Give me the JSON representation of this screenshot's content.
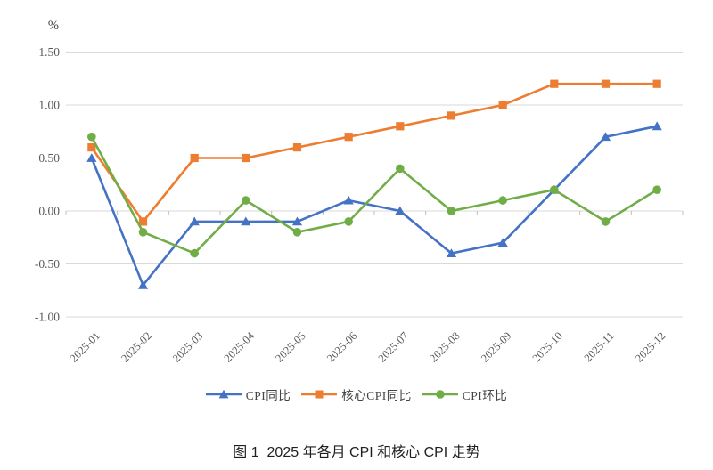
{
  "chart_data": {
    "type": "line",
    "title": "图 1  2025 年各月 CPI 和核心 CPI 走势",
    "unit_label": "%",
    "categories": [
      "2025-01",
      "2025-02",
      "2025-03",
      "2025-04",
      "2025-05",
      "2025-06",
      "2025-07",
      "2025-08",
      "2025-09",
      "2025-10",
      "2025-11",
      "2025-12"
    ],
    "series": [
      {
        "name": "CPI同比",
        "marker": "triangle",
        "color": "#4472C4",
        "values": [
          0.5,
          -0.7,
          -0.1,
          -0.1,
          -0.1,
          0.1,
          0.0,
          -0.4,
          -0.3,
          0.2,
          0.7,
          0.8
        ]
      },
      {
        "name": "核心CPI同比",
        "marker": "square",
        "color": "#ED7D31",
        "values": [
          0.6,
          -0.1,
          0.5,
          0.5,
          0.6,
          0.7,
          0.8,
          0.9,
          1.0,
          1.2,
          1.2,
          1.2
        ]
      },
      {
        "name": "CPI环比",
        "marker": "circle",
        "color": "#70AD47",
        "values": [
          0.7,
          -0.2,
          -0.4,
          0.1,
          -0.2,
          -0.1,
          0.4,
          0.0,
          0.1,
          0.2,
          -0.1,
          0.2
        ]
      }
    ],
    "y_ticks": [
      1.5,
      1.0,
      0.5,
      0.0,
      -0.5,
      -1.0
    ],
    "y_tick_labels": [
      "1.50",
      "1.00",
      "0.50",
      "0.00",
      "-0.50",
      "-1.00"
    ],
    "ylim": [
      -1.0,
      1.5
    ],
    "grid": true,
    "legend_position": "bottom",
    "colors": {
      "gridline": "#D9D9D9",
      "tick": "#BFBFBF",
      "axis_text": "#595959",
      "caption_text": "#1F1F1F"
    }
  }
}
